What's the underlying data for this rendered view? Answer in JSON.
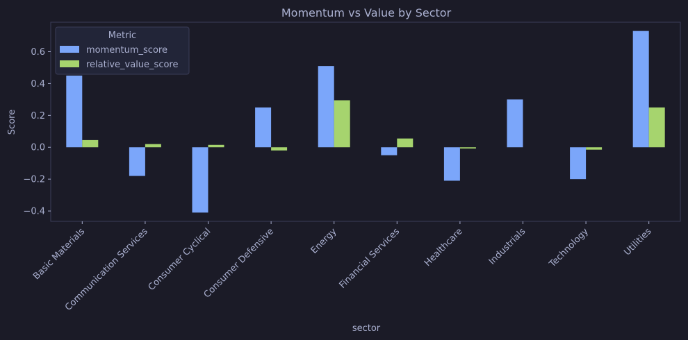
{
  "chart_data": {
    "type": "bar",
    "title": "Momentum vs Value by Sector",
    "xlabel": "sector",
    "ylabel": "Score",
    "categories": [
      "Basic Materials",
      "Communication Services",
      "Consumer Cyclical",
      "Consumer Defensive",
      "Energy",
      "Financial Services",
      "Healthcare",
      "Industrials",
      "Technology",
      "Utilities"
    ],
    "series": [
      {
        "name": "momentum_score",
        "color": "#7ba6fa",
        "values": [
          0.45,
          -0.18,
          -0.41,
          0.25,
          0.51,
          -0.05,
          -0.21,
          0.3,
          -0.2,
          0.73
        ]
      },
      {
        "name": "relative_value_score",
        "color": "#a6d46e",
        "values": [
          0.045,
          0.02,
          0.015,
          -0.02,
          0.295,
          0.055,
          -0.008,
          0.0,
          -0.015,
          0.25
        ]
      }
    ],
    "ylim": [
      -0.465,
      0.785
    ],
    "yticks": [
      -0.4,
      -0.2,
      0.0,
      0.2,
      0.4,
      0.6
    ],
    "ytick_labels": [
      "−0.4",
      "−0.2",
      "0.0",
      "0.2",
      "0.4",
      "0.6"
    ],
    "legend": {
      "title": "Metric",
      "position": "top-left"
    },
    "grid": false,
    "colors": {
      "background": "#1b1b27",
      "plot_border": "#3b3d58",
      "text": "#aab0d0",
      "legend_bg": "#222538"
    }
  }
}
